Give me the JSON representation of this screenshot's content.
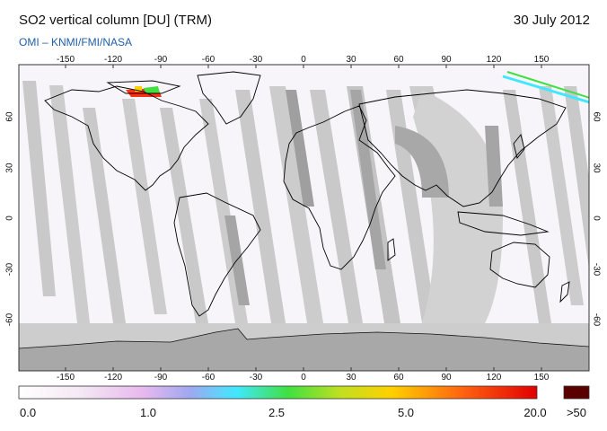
{
  "header": {
    "title": "SO2 vertical column [DU] (TRM)",
    "date": "30 July 2012",
    "source": "OMI  –  KNMI/FMI/NASA"
  },
  "map": {
    "lon_ticks": [
      "-150",
      "-120",
      "-90",
      "-60",
      "-30",
      "0",
      "30",
      "60",
      "90",
      "120",
      "150"
    ],
    "lat_ticks": [
      "60",
      "30",
      "0",
      "-30",
      "-60"
    ],
    "lon_range": [
      -180,
      180
    ],
    "lat_range": [
      -90,
      90
    ],
    "colors": {
      "no_data": "#c8c8c8",
      "no_data_dark": "#9a9a9a",
      "background": "#f6f3f8",
      "coast": "#000000"
    }
  },
  "colorbar": {
    "labels": [
      "0.0",
      "1.0",
      "2.5",
      "5.0",
      "20.0",
      ">50"
    ],
    "overflow_color": "#5a0000"
  }
}
